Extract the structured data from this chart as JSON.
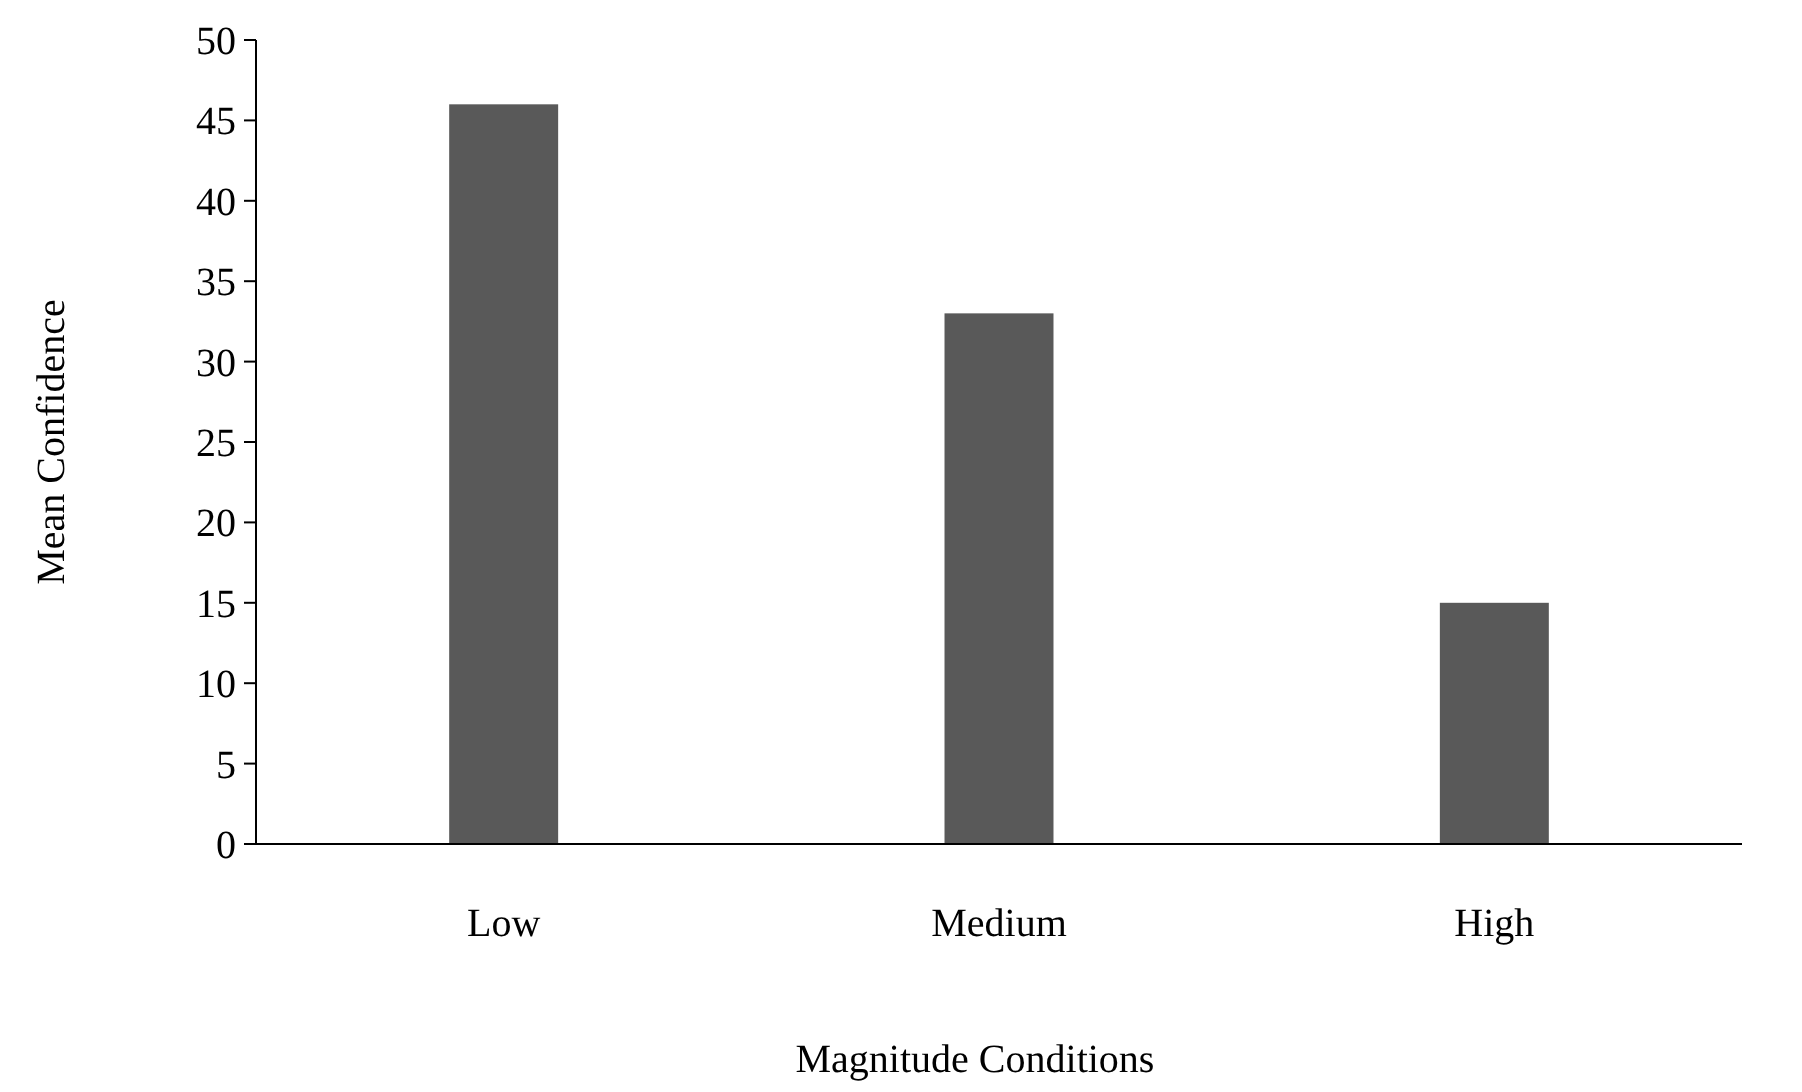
{
  "chart_data": {
    "type": "bar",
    "xlabel": "Magnitude Conditions",
    "ylabel": "Mean Confidence",
    "categories": [
      "Low",
      "Medium",
      "High"
    ],
    "values": [
      46,
      33,
      15
    ],
    "color": "#595959",
    "ylim": [
      0,
      50
    ],
    "yticks": [
      0,
      5,
      10,
      15,
      20,
      25,
      30,
      35,
      40,
      45,
      50
    ],
    "grid": false
  }
}
